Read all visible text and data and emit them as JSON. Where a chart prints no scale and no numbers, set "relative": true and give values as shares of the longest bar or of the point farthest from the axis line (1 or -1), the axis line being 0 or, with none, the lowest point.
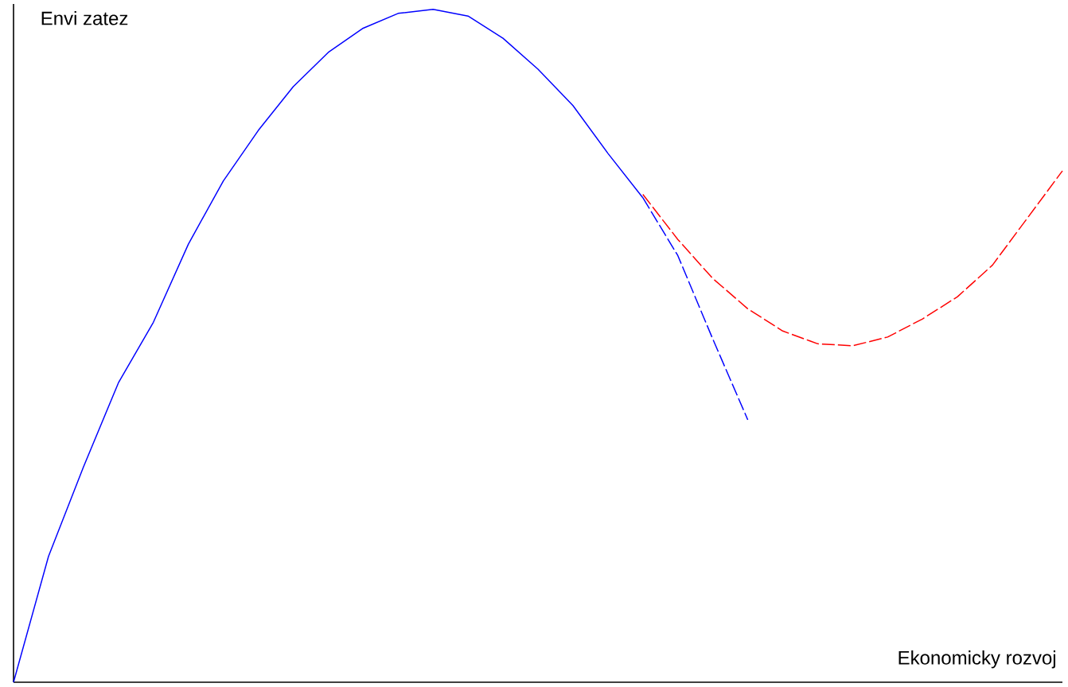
{
  "chart_data": {
    "type": "line",
    "relative": true,
    "xlabel": "Ekonomicky rozvoj",
    "ylabel": "Envi zatez",
    "categories": [
      null,
      null,
      null,
      null,
      null,
      null,
      null,
      null,
      null,
      null,
      null,
      null,
      null,
      null,
      null,
      null,
      null,
      null,
      null,
      null,
      null,
      null,
      null,
      null,
      null,
      null,
      null,
      null,
      null,
      null,
      null
    ],
    "series": [
      {
        "color": "#0000ff",
        "line_style": "solid",
        "values": [
          0,
          0.187,
          0.32,
          0.445,
          0.535,
          0.651,
          0.745,
          0.82,
          0.885,
          0.936,
          0.972,
          0.994,
          1,
          0.99,
          0.957,
          0.911,
          0.857,
          0.786,
          0.72,
          null,
          null,
          null,
          null,
          null,
          null,
          null,
          null,
          null,
          null,
          null,
          null
        ]
      },
      {
        "color": "#0000ff",
        "line_style": "dashed",
        "values": [
          null,
          null,
          null,
          null,
          null,
          null,
          null,
          null,
          null,
          null,
          null,
          null,
          null,
          null,
          null,
          null,
          null,
          null,
          0.72,
          0.634,
          0.51,
          0.39,
          null,
          null,
          null,
          null,
          null,
          null,
          null,
          null,
          null
        ]
      },
      {
        "color": "#ff0000",
        "line_style": "dashed",
        "values": [
          null,
          null,
          null,
          null,
          null,
          null,
          null,
          null,
          null,
          null,
          null,
          null,
          null,
          null,
          null,
          null,
          null,
          null,
          0.725,
          0.658,
          0.6,
          0.555,
          0.522,
          0.503,
          0.5,
          0.513,
          0.54,
          0.573,
          0.62,
          0.69,
          0.76
        ]
      }
    ]
  }
}
